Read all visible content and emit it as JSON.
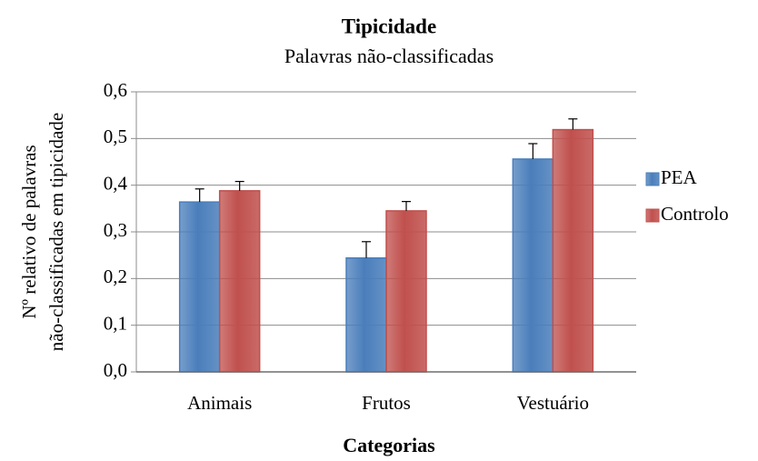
{
  "chart_data": {
    "type": "bar",
    "title": "Tipicidade",
    "subtitle": "Palavras não-classificadas",
    "xlabel": "Categorias",
    "ylabel": [
      "Nº relativo de palavras",
      "não-classificadas em tipicidade"
    ],
    "categories": [
      "Animais",
      "Frutos",
      "Vestuário"
    ],
    "series": [
      {
        "name": "PEA",
        "color": "#4a7ebb",
        "values": [
          0.364,
          0.244,
          0.456
        ],
        "errors": [
          0.028,
          0.035,
          0.033
        ]
      },
      {
        "name": "Controlo",
        "color": "#c0504d",
        "values": [
          0.388,
          0.345,
          0.519
        ],
        "errors": [
          0.02,
          0.02,
          0.023
        ]
      }
    ],
    "ylim": [
      0,
      0.6
    ],
    "yticks": [
      {
        "value": 0,
        "label": "0,0"
      },
      {
        "value": 0.1,
        "label": "0,1"
      },
      {
        "value": 0.2,
        "label": "0,2"
      },
      {
        "value": 0.3,
        "label": "0,3"
      },
      {
        "value": 0.4,
        "label": "0,4"
      },
      {
        "value": 0.5,
        "label": "0,5"
      },
      {
        "value": 0.6,
        "label": "0,6"
      }
    ],
    "grid": true,
    "legend": "right"
  }
}
